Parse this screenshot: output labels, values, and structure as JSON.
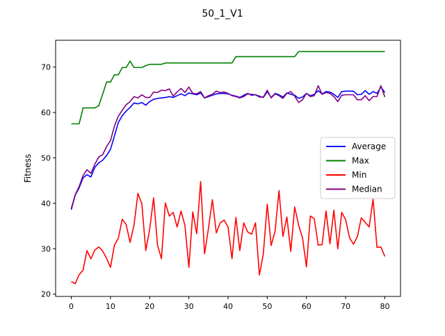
{
  "chart_data": {
    "type": "line",
    "title": "50_1_V1",
    "xlabel": "",
    "ylabel": "Fitness",
    "xlim": [
      -4,
      84
    ],
    "ylim": [
      19.5,
      75.9
    ],
    "x_ticks": [
      0,
      10,
      20,
      30,
      40,
      50,
      60,
      70,
      80
    ],
    "y_ticks": [
      20,
      30,
      40,
      50,
      60,
      70
    ],
    "grid": false,
    "legend_position": "center-right",
    "x": [
      0,
      1,
      2,
      3,
      4,
      5,
      6,
      7,
      8,
      9,
      10,
      11,
      12,
      13,
      14,
      15,
      16,
      17,
      18,
      19,
      20,
      21,
      22,
      23,
      24,
      25,
      26,
      27,
      28,
      29,
      30,
      31,
      32,
      33,
      34,
      35,
      36,
      37,
      38,
      39,
      40,
      41,
      42,
      43,
      44,
      45,
      46,
      47,
      48,
      49,
      50,
      51,
      52,
      53,
      54,
      55,
      56,
      57,
      58,
      59,
      60,
      61,
      62,
      63,
      64,
      65,
      66,
      67,
      68,
      69,
      70,
      71,
      72,
      73,
      74,
      75,
      76,
      77,
      78,
      79,
      80
    ],
    "series": [
      {
        "name": "Average",
        "color": "#0000ff",
        "values": [
          38.6,
          41.8,
          43.4,
          45.6,
          46.3,
          45.8,
          47.9,
          48.9,
          49.5,
          50.5,
          51.9,
          54.8,
          57.8,
          59.3,
          60.3,
          61.1,
          62.1,
          61.9,
          62.2,
          61.6,
          62.4,
          62.9,
          63.1,
          63.2,
          63.3,
          63.5,
          63.3,
          63.7,
          64.1,
          63.7,
          64.3,
          64.1,
          63.9,
          64.3,
          63.2,
          63.5,
          63.8,
          64.1,
          64.2,
          64.2,
          64.1,
          63.8,
          63.6,
          63.3,
          63.8,
          64.2,
          63.8,
          63.9,
          63.6,
          63.3,
          64.6,
          63.3,
          64.2,
          63.9,
          63.4,
          64.3,
          64.0,
          63.8,
          63.1,
          63.4,
          64.2,
          63.7,
          64.0,
          64.8,
          64.1,
          64.6,
          64.5,
          64.0,
          63.3,
          64.6,
          64.7,
          64.7,
          64.7,
          63.9,
          64.0,
          64.8,
          64.0,
          64.6,
          64.2,
          65.6,
          64.4
        ]
      },
      {
        "name": "Max",
        "color": "#008000",
        "values": [
          57.5,
          57.5,
          57.5,
          61.0,
          61.0,
          61.0,
          61.0,
          61.5,
          64.0,
          66.7,
          66.7,
          68.3,
          68.3,
          69.9,
          69.9,
          71.3,
          69.9,
          69.9,
          69.9,
          70.3,
          70.6,
          70.6,
          70.6,
          70.6,
          70.9,
          70.9,
          70.9,
          70.9,
          70.9,
          70.9,
          70.9,
          70.9,
          70.9,
          70.9,
          70.9,
          70.9,
          70.9,
          70.9,
          70.9,
          70.9,
          70.9,
          70.9,
          72.3,
          72.3,
          72.3,
          72.3,
          72.3,
          72.3,
          72.3,
          72.3,
          72.3,
          72.3,
          72.3,
          72.3,
          72.3,
          72.3,
          72.3,
          72.3,
          73.4,
          73.4,
          73.4,
          73.4,
          73.4,
          73.4,
          73.4,
          73.4,
          73.4,
          73.4,
          73.4,
          73.4,
          73.4,
          73.4,
          73.4,
          73.4,
          73.4,
          73.4,
          73.4,
          73.4,
          73.4,
          73.4,
          73.4
        ]
      },
      {
        "name": "Min",
        "color": "#ff0000",
        "values": [
          22.8,
          22.3,
          24.3,
          25.3,
          29.6,
          27.8,
          29.7,
          30.4,
          29.5,
          27.9,
          25.9,
          30.8,
          32.3,
          36.5,
          35.3,
          31.4,
          35.2,
          42.2,
          39.9,
          29.6,
          34.3,
          41.2,
          30.8,
          27.8,
          40.1,
          37.2,
          38.0,
          34.8,
          38.3,
          35.1,
          25.9,
          38.1,
          33.3,
          44.8,
          28.9,
          34.5,
          40.8,
          33.5,
          35.7,
          36.3,
          34.8,
          27.8,
          36.9,
          29.6,
          35.7,
          33.7,
          33.2,
          35.7,
          24.2,
          28.9,
          39.8,
          30.7,
          33.9,
          42.8,
          32.7,
          37.0,
          29.4,
          39.2,
          35.2,
          32.4,
          26.0,
          37.2,
          36.6,
          30.8,
          30.9,
          38.3,
          31.1,
          38.5,
          30.0,
          38.0,
          36.4,
          32.4,
          31.0,
          32.7,
          36.8,
          35.8,
          34.8,
          40.9,
          30.3,
          30.4,
          28.3
        ]
      },
      {
        "name": "Median",
        "color": "#800080",
        "values": [
          38.9,
          41.9,
          43.7,
          46.1,
          47.4,
          46.6,
          48.6,
          50.2,
          50.7,
          52.5,
          53.8,
          57.0,
          59.2,
          60.5,
          61.7,
          62.4,
          63.5,
          63.2,
          63.9,
          63.3,
          63.3,
          64.5,
          64.4,
          64.9,
          64.8,
          65.2,
          63.6,
          64.5,
          65.3,
          64.4,
          65.6,
          64.2,
          64.1,
          64.6,
          63.2,
          63.7,
          64.0,
          64.7,
          64.4,
          64.5,
          64.2,
          63.7,
          63.5,
          63.2,
          63.5,
          64.1,
          64.0,
          63.9,
          63.4,
          63.4,
          64.9,
          63.2,
          64.1,
          63.7,
          63.1,
          64.2,
          64.6,
          63.6,
          62.2,
          62.8,
          64.2,
          63.5,
          63.7,
          65.9,
          64.0,
          64.4,
          64.2,
          63.5,
          62.4,
          63.8,
          63.9,
          63.9,
          63.9,
          62.8,
          62.8,
          63.7,
          62.6,
          63.5,
          63.5,
          65.9,
          63.4
        ]
      }
    ]
  }
}
